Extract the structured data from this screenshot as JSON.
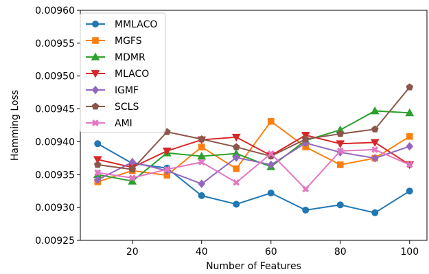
{
  "chart_data": {
    "type": "line",
    "title": "",
    "xlabel": "Number of Features",
    "ylabel": "Hamming Loss",
    "x": [
      10,
      20,
      30,
      40,
      50,
      60,
      70,
      80,
      90,
      100
    ],
    "xlim": [
      5,
      105
    ],
    "ylim": [
      0.00925,
      0.0096
    ],
    "xticks": [
      20,
      40,
      60,
      80,
      100
    ],
    "yticks": [
      0.00925,
      0.0093,
      0.00935,
      0.0094,
      0.00945,
      0.0095,
      0.00955,
      0.0096
    ],
    "xtick_labels": [
      "20",
      "40",
      "60",
      "80",
      "100"
    ],
    "ytick_labels": [
      "0.00925",
      "0.00930",
      "0.00935",
      "0.00940",
      "0.00945",
      "0.00950",
      "0.00955",
      "0.00960"
    ],
    "grid": false,
    "legend_position": "upper-left",
    "series": [
      {
        "name": "MMLACO",
        "color": "#1f77b4",
        "marker": "circle",
        "values": [
          0.009397,
          0.009367,
          0.00936,
          0.009318,
          0.009305,
          0.009322,
          0.009296,
          0.009304,
          0.009292,
          0.009325
        ]
      },
      {
        "name": "MGFS",
        "color": "#ff7f0e",
        "marker": "square",
        "values": [
          0.009339,
          0.009356,
          0.009349,
          0.009392,
          0.009359,
          0.009431,
          0.009392,
          0.009365,
          0.009375,
          0.009408
        ]
      },
      {
        "name": "MDMR",
        "color": "#2ca02c",
        "marker": "triangle-up",
        "values": [
          0.00935,
          0.00934,
          0.009383,
          0.009378,
          0.009382,
          0.009362,
          0.009402,
          0.009418,
          0.009447,
          0.009444
        ]
      },
      {
        "name": "MLACO",
        "color": "#d62728",
        "marker": "triangle-down",
        "values": [
          0.009373,
          0.009361,
          0.009386,
          0.009403,
          0.009407,
          0.009379,
          0.00941,
          0.009397,
          0.009399,
          0.009365
        ]
      },
      {
        "name": "IGMF",
        "color": "#9467bd",
        "marker": "diamond",
        "values": [
          0.009342,
          0.009369,
          0.009356,
          0.009336,
          0.009376,
          0.009365,
          0.009398,
          0.009384,
          0.009375,
          0.009393
        ]
      },
      {
        "name": "SCLS",
        "color": "#8c564b",
        "marker": "pentagon",
        "values": [
          0.009365,
          0.009358,
          0.009415,
          0.009404,
          0.009392,
          0.009378,
          0.009404,
          0.009412,
          0.009419,
          0.009483
        ]
      },
      {
        "name": "AMI",
        "color": "#e377c2",
        "marker": "x-filled",
        "values": [
          0.009353,
          0.009345,
          0.009358,
          0.009369,
          0.009338,
          0.009382,
          0.009328,
          0.009386,
          0.009388,
          0.009365
        ]
      }
    ]
  }
}
